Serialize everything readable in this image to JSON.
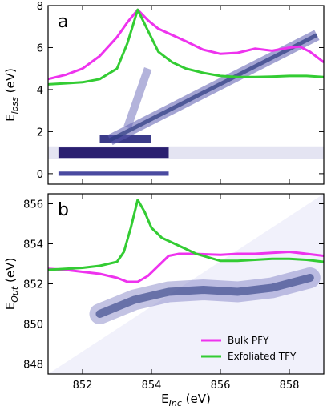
{
  "chart_data": [
    {
      "type": "line",
      "panel_label": "a",
      "ylabel": "E",
      "ylabel_sub": "loss",
      "ylabel_unit": " (eV)",
      "xlim": [
        851,
        859
      ],
      "ylim": [
        -0.5,
        8
      ],
      "yticks": [
        0,
        2,
        4,
        6,
        8
      ],
      "xticks": [
        852,
        854,
        856,
        858
      ],
      "grid": false,
      "series": [
        {
          "name": "Bulk PFY",
          "color": "#ee33ee",
          "x": [
            851,
            851.5,
            852,
            852.5,
            853,
            853.3,
            853.6,
            853.9,
            854.2,
            854.6,
            855,
            855.5,
            856,
            856.5,
            857,
            857.5,
            858,
            858.3,
            858.6,
            859
          ],
          "y": [
            4.5,
            4.7,
            5.0,
            5.6,
            6.5,
            7.2,
            7.8,
            7.3,
            6.9,
            6.6,
            6.3,
            5.9,
            5.7,
            5.75,
            5.95,
            5.85,
            6.0,
            6.05,
            5.8,
            5.3
          ]
        },
        {
          "name": "Exfoliated TFY",
          "color": "#33cc33",
          "x": [
            851,
            851.5,
            852,
            852.5,
            853,
            853.3,
            853.6,
            853.9,
            854.2,
            854.6,
            855,
            855.5,
            856,
            856.5,
            857,
            857.5,
            858,
            858.5,
            859
          ],
          "y": [
            4.25,
            4.3,
            4.35,
            4.5,
            5.0,
            6.2,
            7.8,
            6.8,
            5.8,
            5.3,
            5.0,
            4.8,
            4.65,
            4.6,
            4.6,
            4.62,
            4.65,
            4.65,
            4.6
          ]
        }
      ]
    },
    {
      "type": "line",
      "panel_label": "b",
      "xlabel": "E",
      "xlabel_sub": "Inc",
      "xlabel_unit": " (eV)",
      "ylabel": "E",
      "ylabel_sub": "Out",
      "ylabel_unit": " (eV)",
      "xlim": [
        851,
        859
      ],
      "ylim": [
        847.5,
        856.5
      ],
      "yticks": [
        848,
        850,
        852,
        854,
        856
      ],
      "xticks": [
        852,
        854,
        856,
        858
      ],
      "xtick_labels": [
        "852",
        "854",
        "856",
        "858"
      ],
      "grid": false,
      "legend": "bottom-right",
      "series": [
        {
          "name": "Bulk PFY",
          "color": "#ee33ee",
          "x": [
            851,
            851.5,
            852,
            852.5,
            853,
            853.3,
            853.6,
            853.9,
            854.2,
            854.5,
            854.8,
            855.2,
            856,
            856.5,
            857,
            857.5,
            858,
            858.5,
            859
          ],
          "y": [
            852.75,
            852.7,
            852.6,
            852.5,
            852.3,
            852.1,
            852.1,
            852.4,
            852.9,
            853.4,
            853.5,
            853.5,
            853.45,
            853.5,
            853.5,
            853.55,
            853.6,
            853.5,
            853.4
          ]
        },
        {
          "name": "Exfoliated TFY",
          "color": "#33cc33",
          "x": [
            851,
            851.5,
            852,
            852.5,
            853,
            853.2,
            853.4,
            853.6,
            853.8,
            854,
            854.3,
            854.8,
            855.3,
            856,
            856.5,
            857,
            857.5,
            858,
            858.5,
            859
          ],
          "y": [
            852.7,
            852.75,
            852.8,
            852.9,
            853.1,
            853.6,
            854.8,
            856.2,
            855.6,
            854.8,
            854.3,
            853.9,
            853.5,
            853.15,
            853.15,
            853.2,
            853.25,
            853.25,
            853.2,
            853.1
          ]
        }
      ]
    }
  ]
}
